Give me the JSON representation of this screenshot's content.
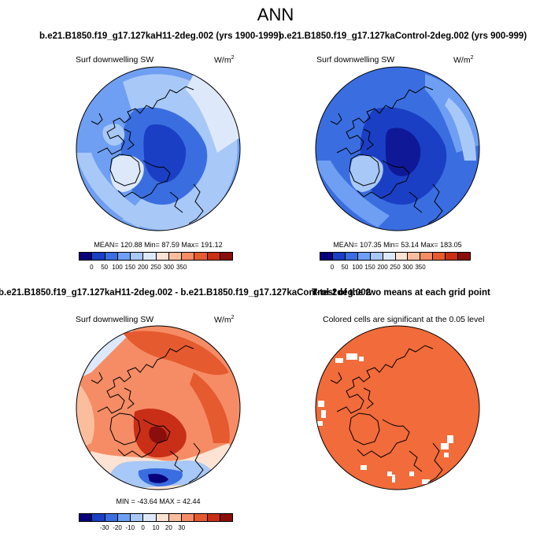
{
  "page": {
    "title": "ANN",
    "top_left_title": "b.e21.B1850.f19_g17.127kaH11-2deg.002 (yrs 1900-1999)",
    "top_right_title": "b.e21.B1850.f19_g17.127kaControl-2deg.002 (yrs 900-999)",
    "diff_title": "b.e21.B1850.f19_g17.127kaH11-2deg.002 - b.e21.B1850.f19_g17.127kaControl-2deg.002",
    "ttest_title": "T-test of the two means at each grid point"
  },
  "panels": {
    "top_left": {
      "variable": "Surf downwelling SW",
      "units_base": "W/m",
      "units_exp": "2",
      "stats": "MEAN= 120.88  Min=  87.59  Max= 191.12"
    },
    "top_right": {
      "variable": "Surf downwelling SW",
      "units_base": "W/m",
      "units_exp": "2",
      "stats": "MEAN= 107.35  Min=  53.14  Max= 183.05"
    },
    "bottom_left": {
      "variable": "Surf downwelling SW",
      "units_base": "W/m",
      "units_exp": "2",
      "stats": "MIN = -43.64  MAX =  42.44"
    },
    "bottom_right": {
      "note": "Colored cells are significant at the 0.05 level"
    }
  },
  "colorbars": {
    "absolute": {
      "tick_labels": [
        "0",
        "50",
        "100",
        "150",
        "200",
        "250",
        "300",
        "350"
      ],
      "colors": [
        "#08007a",
        "#1a3fc4",
        "#3a6ee0",
        "#6f9ff2",
        "#a8c8f7",
        "#dde9fb",
        "#fde3d3",
        "#fbbe9d",
        "#f58c65",
        "#e65a30",
        "#c92f16",
        "#8a0f0c"
      ]
    },
    "difference": {
      "tick_labels": [
        "-30",
        "-20",
        "-10",
        "0",
        "10",
        "20",
        "30"
      ],
      "colors": [
        "#08007a",
        "#1a3fc4",
        "#3a6ee0",
        "#6f9ff2",
        "#a8c8f7",
        "#dde9fb",
        "#fde3d3",
        "#fbbe9d",
        "#f58c65",
        "#e65a30",
        "#c92f16",
        "#8a0f0c"
      ]
    }
  },
  "map_colors": {
    "land_outline": "#000000",
    "ttest_fill": "#f26b3a"
  }
}
